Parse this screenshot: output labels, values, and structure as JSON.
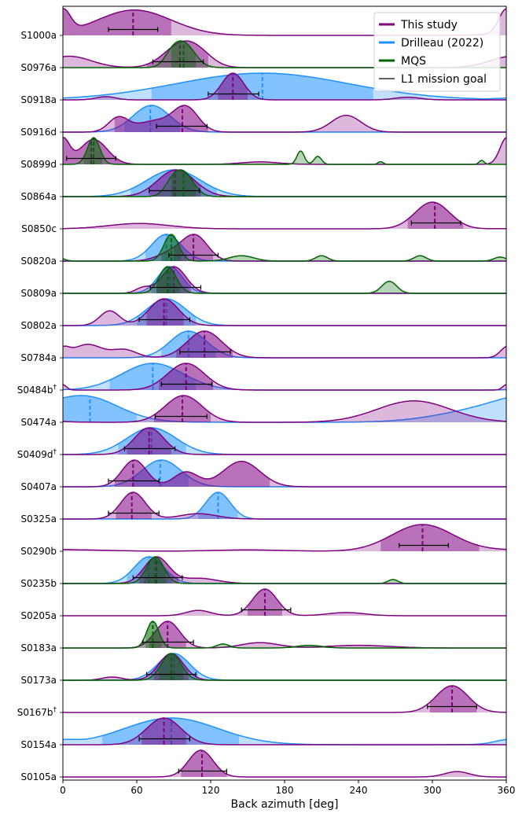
{
  "chart_data": {
    "type": "ridgeline",
    "xlabel": "Back azimuth [deg]",
    "xlim": [
      0,
      360
    ],
    "xticks": [
      0,
      60,
      120,
      180,
      240,
      300,
      360
    ],
    "colors": {
      "this_study": "#800080",
      "drilleau": "#1e90ff",
      "mqs": "#006400",
      "goal": "#000000"
    },
    "legend": [
      "This study",
      "Drilleau (2022)",
      "MQS",
      "L1 mission goal"
    ],
    "events": [
      {
        "name": "S1000a",
        "dagger": false,
        "this": {
          "peaks": [
            [
              58,
              30,
              1.0
            ],
            [
              360,
              6,
              0.9
            ]
          ],
          "median": 57,
          "ci": [
            0,
            88
          ]
        },
        "goal": [
          37,
          77
        ]
      },
      {
        "name": "S0976a",
        "dagger": false,
        "this": {
          "peaks": [
            [
              5,
              18,
              0.55
            ],
            [
              95,
              14,
              1.0
            ],
            [
              110,
              12,
              0.5
            ]
          ],
          "median": 95,
          "ci": [
            68,
            118
          ]
        },
        "mqs": {
          "peaks": [
            [
              98,
              9,
              1.0
            ],
            [
              88,
              6,
              0.3
            ]
          ],
          "median": 98,
          "ci": [
            88,
            108
          ]
        },
        "goal": [
          73,
          114
        ]
      },
      {
        "name": "S0918a",
        "dagger": false,
        "this": {
          "peaks": [
            [
              138,
              9,
              1.0
            ],
            [
              35,
              8,
              0.12
            ],
            [
              280,
              10,
              0.1
            ]
          ],
          "median": 138,
          "ci": [
            126,
            150
          ]
        },
        "dri": {
          "peaks": [
            [
              162,
              70,
              0.5
            ]
          ],
          "median": 162,
          "ci": [
            72,
            252
          ]
        },
        "goal": [
          118,
          159
        ]
      },
      {
        "name": "S0916d",
        "dagger": false,
        "this": {
          "peaks": [
            [
              45,
              8,
              0.5
            ],
            [
              100,
              10,
              0.85
            ],
            [
              230,
              12,
              0.6
            ],
            [
              75,
              15,
              0.4
            ]
          ],
          "median": 97,
          "ci": [
            42,
            118
          ]
        },
        "dri": {
          "peaks": [
            [
              72,
              15,
              0.9
            ]
          ],
          "median": 71,
          "ci": [
            50,
            95
          ]
        },
        "goal": [
          76,
          117
        ]
      },
      {
        "name": "S0899d",
        "dagger": false,
        "this": {
          "peaks": [
            [
              25,
              11,
              1.0
            ],
            [
              0,
              6,
              0.3
            ],
            [
              360,
              5,
              0.7
            ],
            [
              160,
              15,
              0.1
            ]
          ],
          "median": 23,
          "ci": [
            0,
            55
          ]
        },
        "mqs": {
          "peaks": [
            [
              25,
              5,
              1.0
            ],
            [
              193,
              3,
              0.5
            ],
            [
              207,
              3,
              0.3
            ],
            [
              258,
              2,
              0.1
            ],
            [
              340,
              2,
              0.15
            ]
          ],
          "median": 25,
          "ci": [
            17,
            32
          ]
        },
        "goal": [
          3,
          43
        ]
      },
      {
        "name": "S0864a",
        "dagger": false,
        "this": {
          "peaks": [
            [
              92,
              15,
              1.0
            ]
          ],
          "median": 91,
          "ci": [
            70,
            112
          ]
        },
        "dri": {
          "peaks": [
            [
              90,
              22,
              1.0
            ]
          ],
          "median": 90,
          "ci": [
            55,
            125
          ]
        },
        "mqs": {
          "peaks": [
            [
              98,
              8,
              1.0
            ],
            [
              88,
              6,
              0.4
            ]
          ],
          "median": 98,
          "ci": [
            88,
            108
          ]
        },
        "goal": [
          70,
          111
        ]
      },
      {
        "name": "S0850c",
        "dagger": false,
        "this": {
          "peaks": [
            [
              62,
              25,
              0.2
            ],
            [
              300,
              14,
              1.0
            ]
          ],
          "median": 302,
          "ci": [
            280,
            325
          ]
        },
        "goal": [
          283,
          323
        ]
      },
      {
        "name": "S0820a",
        "dagger": false,
        "this": {
          "peaks": [
            [
              108,
              10,
              1.0
            ],
            [
              90,
              12,
              0.4
            ]
          ],
          "median": 106,
          "ci": [
            90,
            122
          ]
        },
        "dri": {
          "peaks": [
            [
              84,
              12,
              1.0
            ]
          ],
          "median": 84,
          "ci": [
            67,
            101
          ]
        },
        "mqs": {
          "peaks": [
            [
              88,
              6,
              1.0
            ],
            [
              210,
              5,
              0.2
            ],
            [
              290,
              5,
              0.2
            ],
            [
              355,
              5,
              0.15
            ],
            [
              145,
              10,
              0.2
            ]
          ],
          "median": 88,
          "ci": [
            80,
            96
          ]
        },
        "goal": [
          86,
          126
        ]
      },
      {
        "name": "S0809a",
        "dagger": false,
        "this": {
          "peaks": [
            [
              90,
              10,
              1.0
            ],
            [
              65,
              6,
              0.2
            ]
          ],
          "median": 90,
          "ci": [
            76,
            104
          ]
        },
        "dri": {
          "peaks": [
            [
              87,
              10,
              1.0
            ]
          ],
          "median": 87,
          "ci": [
            72,
            102
          ]
        },
        "mqs": {
          "peaks": [
            [
              85,
              7,
              1.0
            ],
            [
              265,
              6,
              0.45
            ]
          ],
          "median": 85,
          "ci": [
            76,
            95
          ]
        },
        "goal": [
          71,
          112
        ]
      },
      {
        "name": "S0802a",
        "dagger": false,
        "this": {
          "peaks": [
            [
              82,
              12,
              1.0
            ],
            [
              38,
              8,
              0.55
            ]
          ],
          "median": 82,
          "ci": [
            68,
            98
          ]
        },
        "dri": {
          "peaks": [
            [
              84,
              16,
              1.0
            ]
          ],
          "median": 84,
          "ci": [
            60,
            108
          ]
        },
        "goal": [
          62,
          103
        ]
      },
      {
        "name": "S0784a",
        "dagger": false,
        "this": {
          "peaks": [
            [
              20,
              12,
              0.5
            ],
            [
              50,
              10,
              0.3
            ],
            [
              115,
              14,
              1.0
            ],
            [
              360,
              5,
              0.3
            ]
          ],
          "median": 115,
          "ci": [
            92,
            138
          ]
        },
        "dri": {
          "peaks": [
            [
              102,
              15,
              1.0
            ]
          ],
          "median": 102,
          "ci": [
            80,
            124
          ]
        },
        "goal": [
          95,
          136
        ]
      },
      {
        "name": "S0484b",
        "dagger": true,
        "this": {
          "peaks": [
            [
              100,
              15,
              1.0
            ],
            [
              360,
              3,
              0.2
            ]
          ],
          "median": 100,
          "ci": [
            78,
            122
          ]
        },
        "dri": {
          "peaks": [
            [
              73,
              25,
              0.9
            ]
          ],
          "median": 73,
          "ci": [
            38,
            108
          ]
        },
        "goal": [
          80,
          121
        ]
      },
      {
        "name": "S0474a",
        "dagger": false,
        "this": {
          "peaks": [
            [
              98,
              15,
              1.0
            ],
            [
              285,
              30,
              0.8
            ]
          ],
          "median": 97,
          "ci": [
            74,
            120
          ]
        },
        "dri": {
          "peaks": [
            [
              22,
              25,
              1.0
            ],
            [
              350,
              40,
              0.9
            ]
          ],
          "median": 22,
          "ci": [
            0,
            60
          ]
        },
        "goal": [
          75,
          117
        ]
      },
      {
        "name": "S0409d",
        "dagger": true,
        "this": {
          "peaks": [
            [
              70,
              12,
              1.0
            ]
          ],
          "median": 70,
          "ci": [
            52,
            88
          ]
        },
        "dri": {
          "peaks": [
            [
              72,
              20,
              0.9
            ]
          ],
          "median": 72,
          "ci": [
            45,
            100
          ]
        },
        "goal": [
          50,
          91
        ]
      },
      {
        "name": "S0407a",
        "dagger": false,
        "this": {
          "peaks": [
            [
              58,
              10,
              1.0
            ],
            [
              145,
              15,
              0.95
            ],
            [
              100,
              10,
              0.55
            ]
          ],
          "median": 57,
          "ci": [
            42,
            168
          ]
        },
        "dri": {
          "peaks": [
            [
              80,
              16,
              1.0
            ]
          ],
          "median": 79,
          "ci": [
            56,
            102
          ]
        },
        "goal": [
          37,
          78
        ]
      },
      {
        "name": "S0325a",
        "dagger": false,
        "this": {
          "peaks": [
            [
              57,
              10,
              1.0
            ],
            [
              110,
              15,
              0.2
            ]
          ],
          "median": 56,
          "ci": [
            43,
            72
          ]
        },
        "dri": {
          "peaks": [
            [
              126,
              10,
              1.0
            ]
          ],
          "median": 126,
          "ci": [
            110,
            142
          ]
        },
        "goal": [
          37,
          78
        ]
      },
      {
        "name": "S0290b",
        "dagger": false,
        "this": {
          "peaks": [
            [
              292,
              25,
              1.0
            ],
            [
              10,
              30,
              0.05
            ],
            [
              150,
              30,
              0.05
            ]
          ],
          "median": 292,
          "ci": [
            258,
            338
          ]
        },
        "goal": [
          273,
          313
        ]
      },
      {
        "name": "S0235b",
        "dagger": false,
        "this": {
          "peaks": [
            [
              76,
              10,
              1.0
            ],
            [
              110,
              15,
              0.2
            ]
          ],
          "median": 76,
          "ci": [
            62,
            94
          ]
        },
        "dri": {
          "peaks": [
            [
              70,
              12,
              1.0
            ]
          ],
          "median": 70,
          "ci": [
            52,
            88
          ]
        },
        "mqs": {
          "peaks": [
            [
              75,
              7,
              1.0
            ],
            [
              268,
              4,
              0.15
            ]
          ],
          "median": 75,
          "ci": [
            66,
            84
          ]
        },
        "goal": [
          57,
          97
        ]
      },
      {
        "name": "S0205a",
        "dagger": false,
        "this": {
          "peaks": [
            [
              164,
              10,
              1.0
            ],
            [
              110,
              10,
              0.2
            ],
            [
              230,
              15,
              0.12
            ]
          ],
          "median": 164,
          "ci": [
            150,
            178
          ]
        },
        "goal": [
          145,
          185
        ]
      },
      {
        "name": "S0183a",
        "dagger": false,
        "this": {
          "peaks": [
            [
              85,
              10,
              1.0
            ],
            [
              160,
              15,
              0.2
            ],
            [
              240,
              25,
              0.1
            ]
          ],
          "median": 85,
          "ci": [
            70,
            100
          ]
        },
        "mqs": {
          "peaks": [
            [
              73,
              5,
              1.0
            ],
            [
              130,
              5,
              0.15
            ],
            [
              200,
              10,
              0.1
            ]
          ],
          "median": 73,
          "ci": [
            67,
            80
          ]
        },
        "goal": [
          65,
          106
        ]
      },
      {
        "name": "S0173a",
        "dagger": false,
        "this": {
          "peaks": [
            [
              88,
              10,
              1.0
            ],
            [
              40,
              8,
              0.12
            ]
          ],
          "median": 88,
          "ci": [
            74,
            102
          ]
        },
        "dri": {
          "peaks": [
            [
              90,
              13,
              1.0
            ]
          ],
          "median": 90,
          "ci": [
            70,
            110
          ]
        },
        "mqs": {
          "peaks": [
            [
              88,
              8,
              1.0
            ]
          ],
          "median": 88,
          "ci": [
            78,
            98
          ]
        },
        "goal": [
          68,
          108
        ]
      },
      {
        "name": "S0167b",
        "dagger": true,
        "this": {
          "peaks": [
            [
              316,
              13,
              1.0
            ]
          ],
          "median": 316,
          "ci": [
            298,
            336
          ]
        },
        "goal": [
          296,
          336
        ]
      },
      {
        "name": "S0154a",
        "dagger": false,
        "this": {
          "peaks": [
            [
              82,
              14,
              1.0
            ]
          ],
          "median": 82,
          "ci": [
            64,
            100
          ]
        },
        "dri": {
          "peaks": [
            [
              88,
              38,
              0.95
            ],
            [
              360,
              10,
              0.12
            ]
          ],
          "median": 88,
          "ci": [
            32,
            143
          ]
        },
        "goal": [
          62,
          103
        ]
      },
      {
        "name": "S0105a",
        "dagger": false,
        "this": {
          "peaks": [
            [
              112,
              10,
              1.0
            ],
            [
              320,
              10,
              0.2
            ]
          ],
          "median": 113,
          "ci": [
            96,
            133
          ]
        },
        "goal": [
          94,
          133
        ]
      }
    ]
  }
}
